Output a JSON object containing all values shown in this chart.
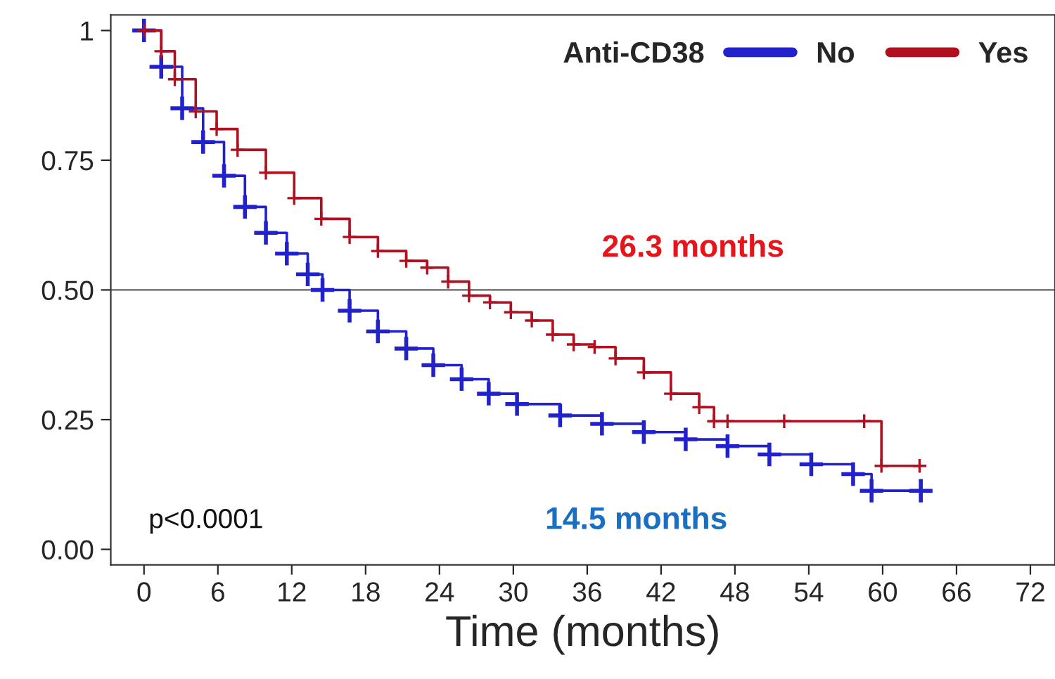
{
  "chart_data": {
    "type": "step",
    "xlabel": "Time (months)",
    "legend_title": "Anti-CD38",
    "legend": "top right",
    "marker": "cross",
    "line_style": "solid",
    "grid": false,
    "xlim": [
      -2.7,
      74
    ],
    "xticks": [
      0,
      6,
      12,
      18,
      24,
      30,
      36,
      42,
      48,
      54,
      60,
      66,
      72
    ],
    "ylim": [
      -0.03,
      1.03
    ],
    "yticks": [
      {
        "value": 0,
        "label": "0.00"
      },
      {
        "value": 0.25,
        "label": "0.25"
      },
      {
        "value": 0.5,
        "label": "0.50"
      },
      {
        "value": 0.75,
        "label": "0.75"
      },
      1
    ],
    "ref_lines": [
      {
        "axis": "y",
        "value": 0.5,
        "color": "#808080"
      }
    ],
    "annotations": [
      "26.3 months",
      "14.5 months",
      "p<0.0001"
    ],
    "series": [
      {
        "name": "No",
        "color": "#2222cc",
        "x": [
          0,
          1.4,
          3.1,
          4.8,
          6.5,
          8.2,
          9.9,
          11.6,
          13.3,
          14.5,
          16.7,
          19,
          21.3,
          23.5,
          25.8,
          28,
          30.3,
          33.8,
          37.2,
          40.6,
          44,
          47.4,
          50.8,
          54.2,
          57.6,
          59.1,
          63.1
        ],
        "values": [
          1,
          0.93,
          0.85,
          0.785,
          0.72,
          0.66,
          0.61,
          0.57,
          0.53,
          0.5,
          0.46,
          0.42,
          0.387,
          0.355,
          0.328,
          0.3,
          0.28,
          0.258,
          0.242,
          0.226,
          0.212,
          0.199,
          0.183,
          0.164,
          0.145,
          0.113,
          0.113
        ]
      },
      {
        "name": "Yes",
        "color": "#b01020",
        "x": [
          0,
          1.4,
          2.5,
          4.2,
          5.9,
          7.6,
          9.9,
          12.2,
          14.4,
          16.7,
          19,
          21.3,
          23,
          24.7,
          26.4,
          28.1,
          29.8,
          31.5,
          33.2,
          34.9,
          36.6,
          38.3,
          40.6,
          42.8,
          45.1,
          46.3,
          47.4,
          52,
          58.5,
          59.9,
          63
        ],
        "values": [
          1,
          0.96,
          0.906,
          0.844,
          0.81,
          0.77,
          0.726,
          0.677,
          0.637,
          0.602,
          0.575,
          0.556,
          0.543,
          0.516,
          0.489,
          0.476,
          0.457,
          0.441,
          0.414,
          0.395,
          0.39,
          0.368,
          0.341,
          0.3,
          0.274,
          0.247,
          0.247,
          0.247,
          0.247,
          0.161,
          0.161
        ]
      }
    ]
  }
}
